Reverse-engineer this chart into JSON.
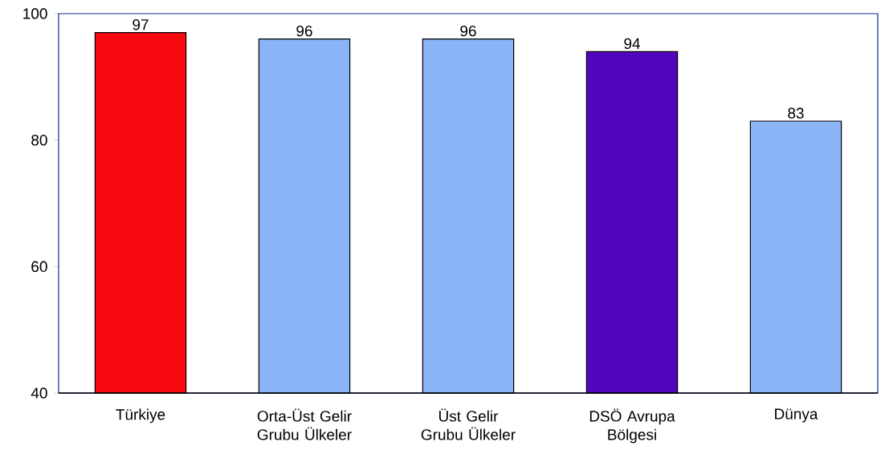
{
  "chart_data": {
    "type": "bar",
    "categories": [
      "Türkiye",
      "Orta-Üst Gelir Grubu Ülkeler",
      "Üst Gelir Grubu Ülkeler",
      "DSÖ Avrupa Bölgesi",
      "Dünya"
    ],
    "values": [
      97,
      96,
      96,
      94,
      83
    ],
    "colors": [
      "#f80a10",
      "#8ab4f6",
      "#8ab4f6",
      "#5206be",
      "#8ab4f6"
    ],
    "ylim": [
      40,
      100
    ],
    "yticks": [
      40,
      60,
      80,
      100
    ],
    "grid": false,
    "data_labels": true
  }
}
